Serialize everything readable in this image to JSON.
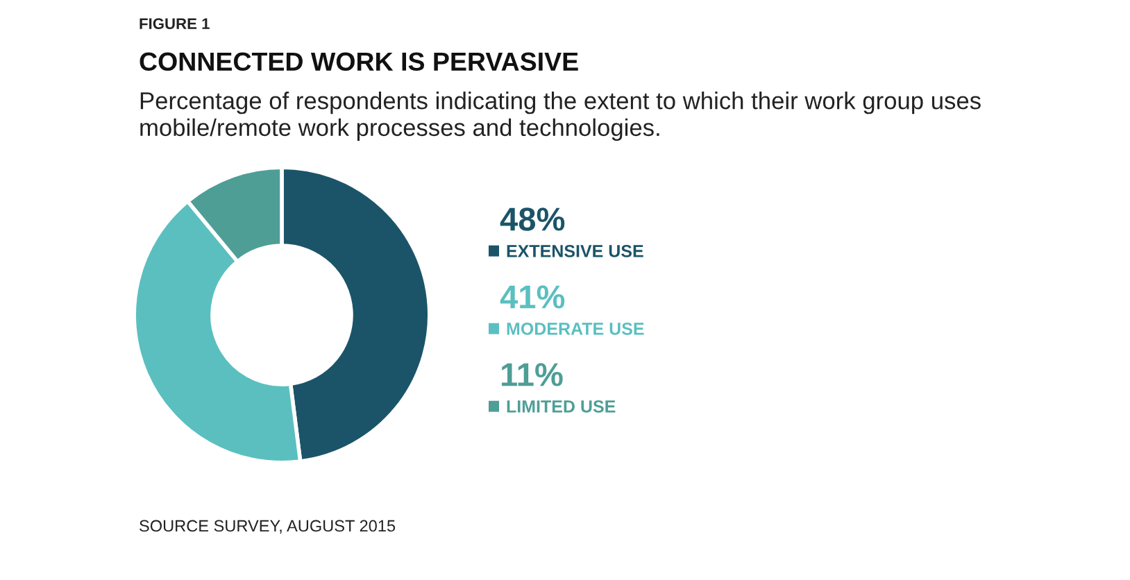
{
  "chart_data": {
    "type": "donut",
    "title": "CONNECTED WORK IS PERVASIVE",
    "subtitle": "Percentage of respondents indicating the extent to which their work group uses\nmobile/remote work processes and technologies.",
    "categories": [
      "EXTENSIVE USE",
      "MODERATE USE",
      "LIMITED USE"
    ],
    "values": [
      48,
      41,
      11
    ],
    "value_labels": [
      "48%",
      "41%",
      "11%"
    ],
    "legend": "right",
    "colors": [
      "#1b5468",
      "#5bbfc0",
      "#4e9e96"
    ],
    "annotations": [
      "FIGURE 1",
      "SOURCE SURVEY, AUGUST 2015"
    ]
  }
}
